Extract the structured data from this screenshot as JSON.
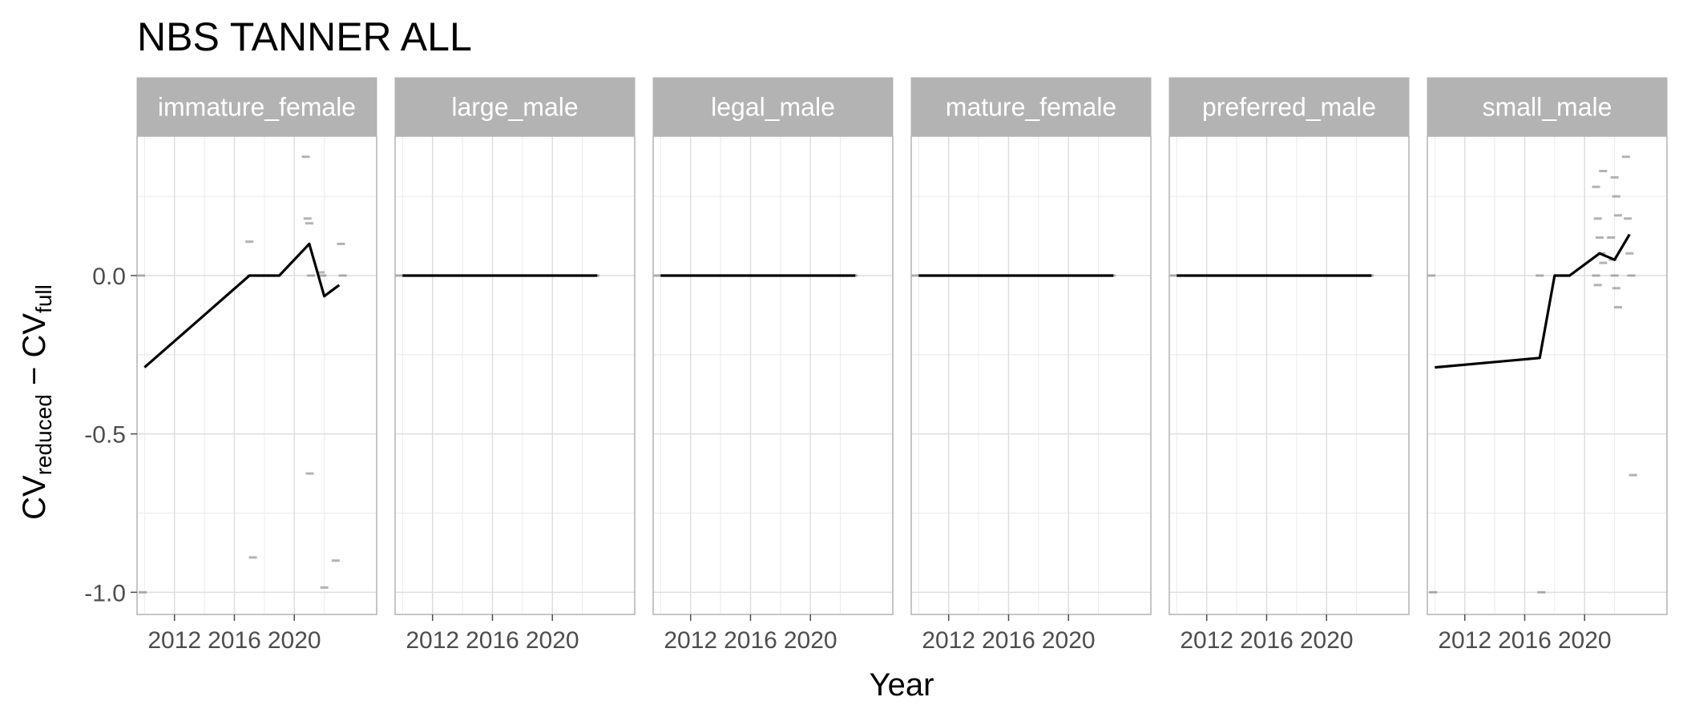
{
  "chart_data": {
    "type": "line",
    "title": "NBS TANNER ALL",
    "xlabel": "Year",
    "ylabel": {
      "base1": "CV",
      "sub1": "reduced",
      "minus": " − ",
      "base2": "CV",
      "sub2": "full"
    },
    "xlim": [
      2009.5,
      2025.5
    ],
    "ylim": [
      -1.07,
      0.44
    ],
    "x_ticks": [
      2012,
      2016,
      2020
    ],
    "x_tick_labels": [
      "2012",
      "2016",
      "2020"
    ],
    "y_ticks": [
      -1.0,
      -0.5,
      0.0
    ],
    "y_tick_labels": [
      "-1.0",
      "-0.5",
      "0.0"
    ],
    "grid": true,
    "line_color": "#000000",
    "point_color": "#808080",
    "panels": [
      {
        "label": "immature_female",
        "line": [
          [
            2010,
            -0.29
          ],
          [
            2017,
            0.0
          ],
          [
            2019,
            0.0
          ],
          [
            2021,
            0.1
          ],
          [
            2022,
            -0.065
          ],
          [
            2023,
            -0.03
          ]
        ],
        "points": [
          [
            2010,
            0.0
          ],
          [
            2010,
            -1.0
          ],
          [
            2017,
            0.107
          ],
          [
            2017,
            0.0
          ],
          [
            2017,
            -0.89
          ],
          [
            2021,
            0.375
          ],
          [
            2021,
            0.18
          ],
          [
            2021,
            0.165
          ],
          [
            2021,
            0.0
          ],
          [
            2020.8,
            -0.625
          ],
          [
            2022,
            0.01
          ],
          [
            2022,
            0.0
          ],
          [
            2022,
            -0.985
          ],
          [
            2023,
            0.1
          ],
          [
            2023,
            0.0
          ],
          [
            2023,
            -0.9
          ]
        ]
      },
      {
        "label": "large_male",
        "line": [
          [
            2010,
            0.0
          ],
          [
            2023,
            0.0
          ]
        ],
        "points": [
          [
            2010,
            0.0
          ],
          [
            2023,
            0.0
          ]
        ]
      },
      {
        "label": "legal_male",
        "line": [
          [
            2010,
            0.0
          ],
          [
            2023,
            0.0
          ]
        ],
        "points": [
          [
            2010,
            0.0
          ],
          [
            2023,
            0.0
          ]
        ]
      },
      {
        "label": "mature_female",
        "line": [
          [
            2010,
            0.0
          ],
          [
            2023,
            0.0
          ]
        ],
        "points": [
          [
            2010,
            0.0
          ],
          [
            2023,
            0.0
          ]
        ]
      },
      {
        "label": "preferred_male",
        "line": [
          [
            2010,
            0.0
          ],
          [
            2023,
            0.0
          ]
        ],
        "points": [
          [
            2010,
            0.0
          ],
          [
            2023,
            0.0
          ]
        ]
      },
      {
        "label": "small_male",
        "line": [
          [
            2010,
            -0.29
          ],
          [
            2017,
            -0.26
          ],
          [
            2018,
            0.0
          ],
          [
            2019,
            0.0
          ],
          [
            2021,
            0.07
          ],
          [
            2022,
            0.05
          ],
          [
            2023,
            0.13
          ]
        ],
        "points": [
          [
            2010,
            0.0
          ],
          [
            2010,
            -1.0
          ],
          [
            2017,
            0.0
          ],
          [
            2017,
            -1.0
          ],
          [
            2021,
            0.33
          ],
          [
            2021,
            0.28
          ],
          [
            2021,
            0.18
          ],
          [
            2021,
            0.12
          ],
          [
            2021,
            0.07
          ],
          [
            2021,
            0.04
          ],
          [
            2021,
            0.0
          ],
          [
            2021,
            -0.03
          ],
          [
            2022,
            0.31
          ],
          [
            2022,
            0.25
          ],
          [
            2022,
            0.19
          ],
          [
            2022,
            0.12
          ],
          [
            2022,
            0.05
          ],
          [
            2022,
            0.0
          ],
          [
            2022,
            -0.04
          ],
          [
            2022,
            -0.1
          ],
          [
            2023,
            0.375
          ],
          [
            2023,
            0.18
          ],
          [
            2023,
            0.07
          ],
          [
            2023,
            0.0
          ],
          [
            2023,
            -0.63
          ]
        ]
      }
    ]
  }
}
